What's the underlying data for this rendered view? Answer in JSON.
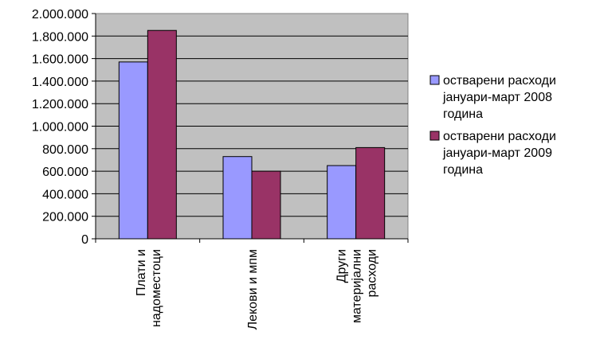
{
  "chart_data": {
    "type": "bar",
    "categories": [
      [
        "Плати и",
        "надоместоци"
      ],
      [
        "Лекови и мпм"
      ],
      [
        "Други",
        "материјални",
        "расходи"
      ]
    ],
    "series": [
      {
        "name": [
          "остварени расходи",
          "јануари-март 2008",
          "година"
        ],
        "color": "#9999FF",
        "values": [
          1570000,
          730000,
          650000
        ]
      },
      {
        "name": [
          "остварени расходи",
          "јануари-март 2009",
          "година"
        ],
        "color": "#993366",
        "values": [
          1850000,
          600000,
          810000
        ]
      }
    ],
    "yticks": [
      "0",
      "200.000",
      "400.000",
      "600.000",
      "800.000",
      "1.000.000",
      "1.200.000",
      "1.400.000",
      "1.600.000",
      "1.800.000",
      "2.000.000"
    ],
    "ylim": [
      0,
      2000000
    ],
    "grid": true,
    "plot_background": "#C0C0C0",
    "legend_position": "right"
  }
}
